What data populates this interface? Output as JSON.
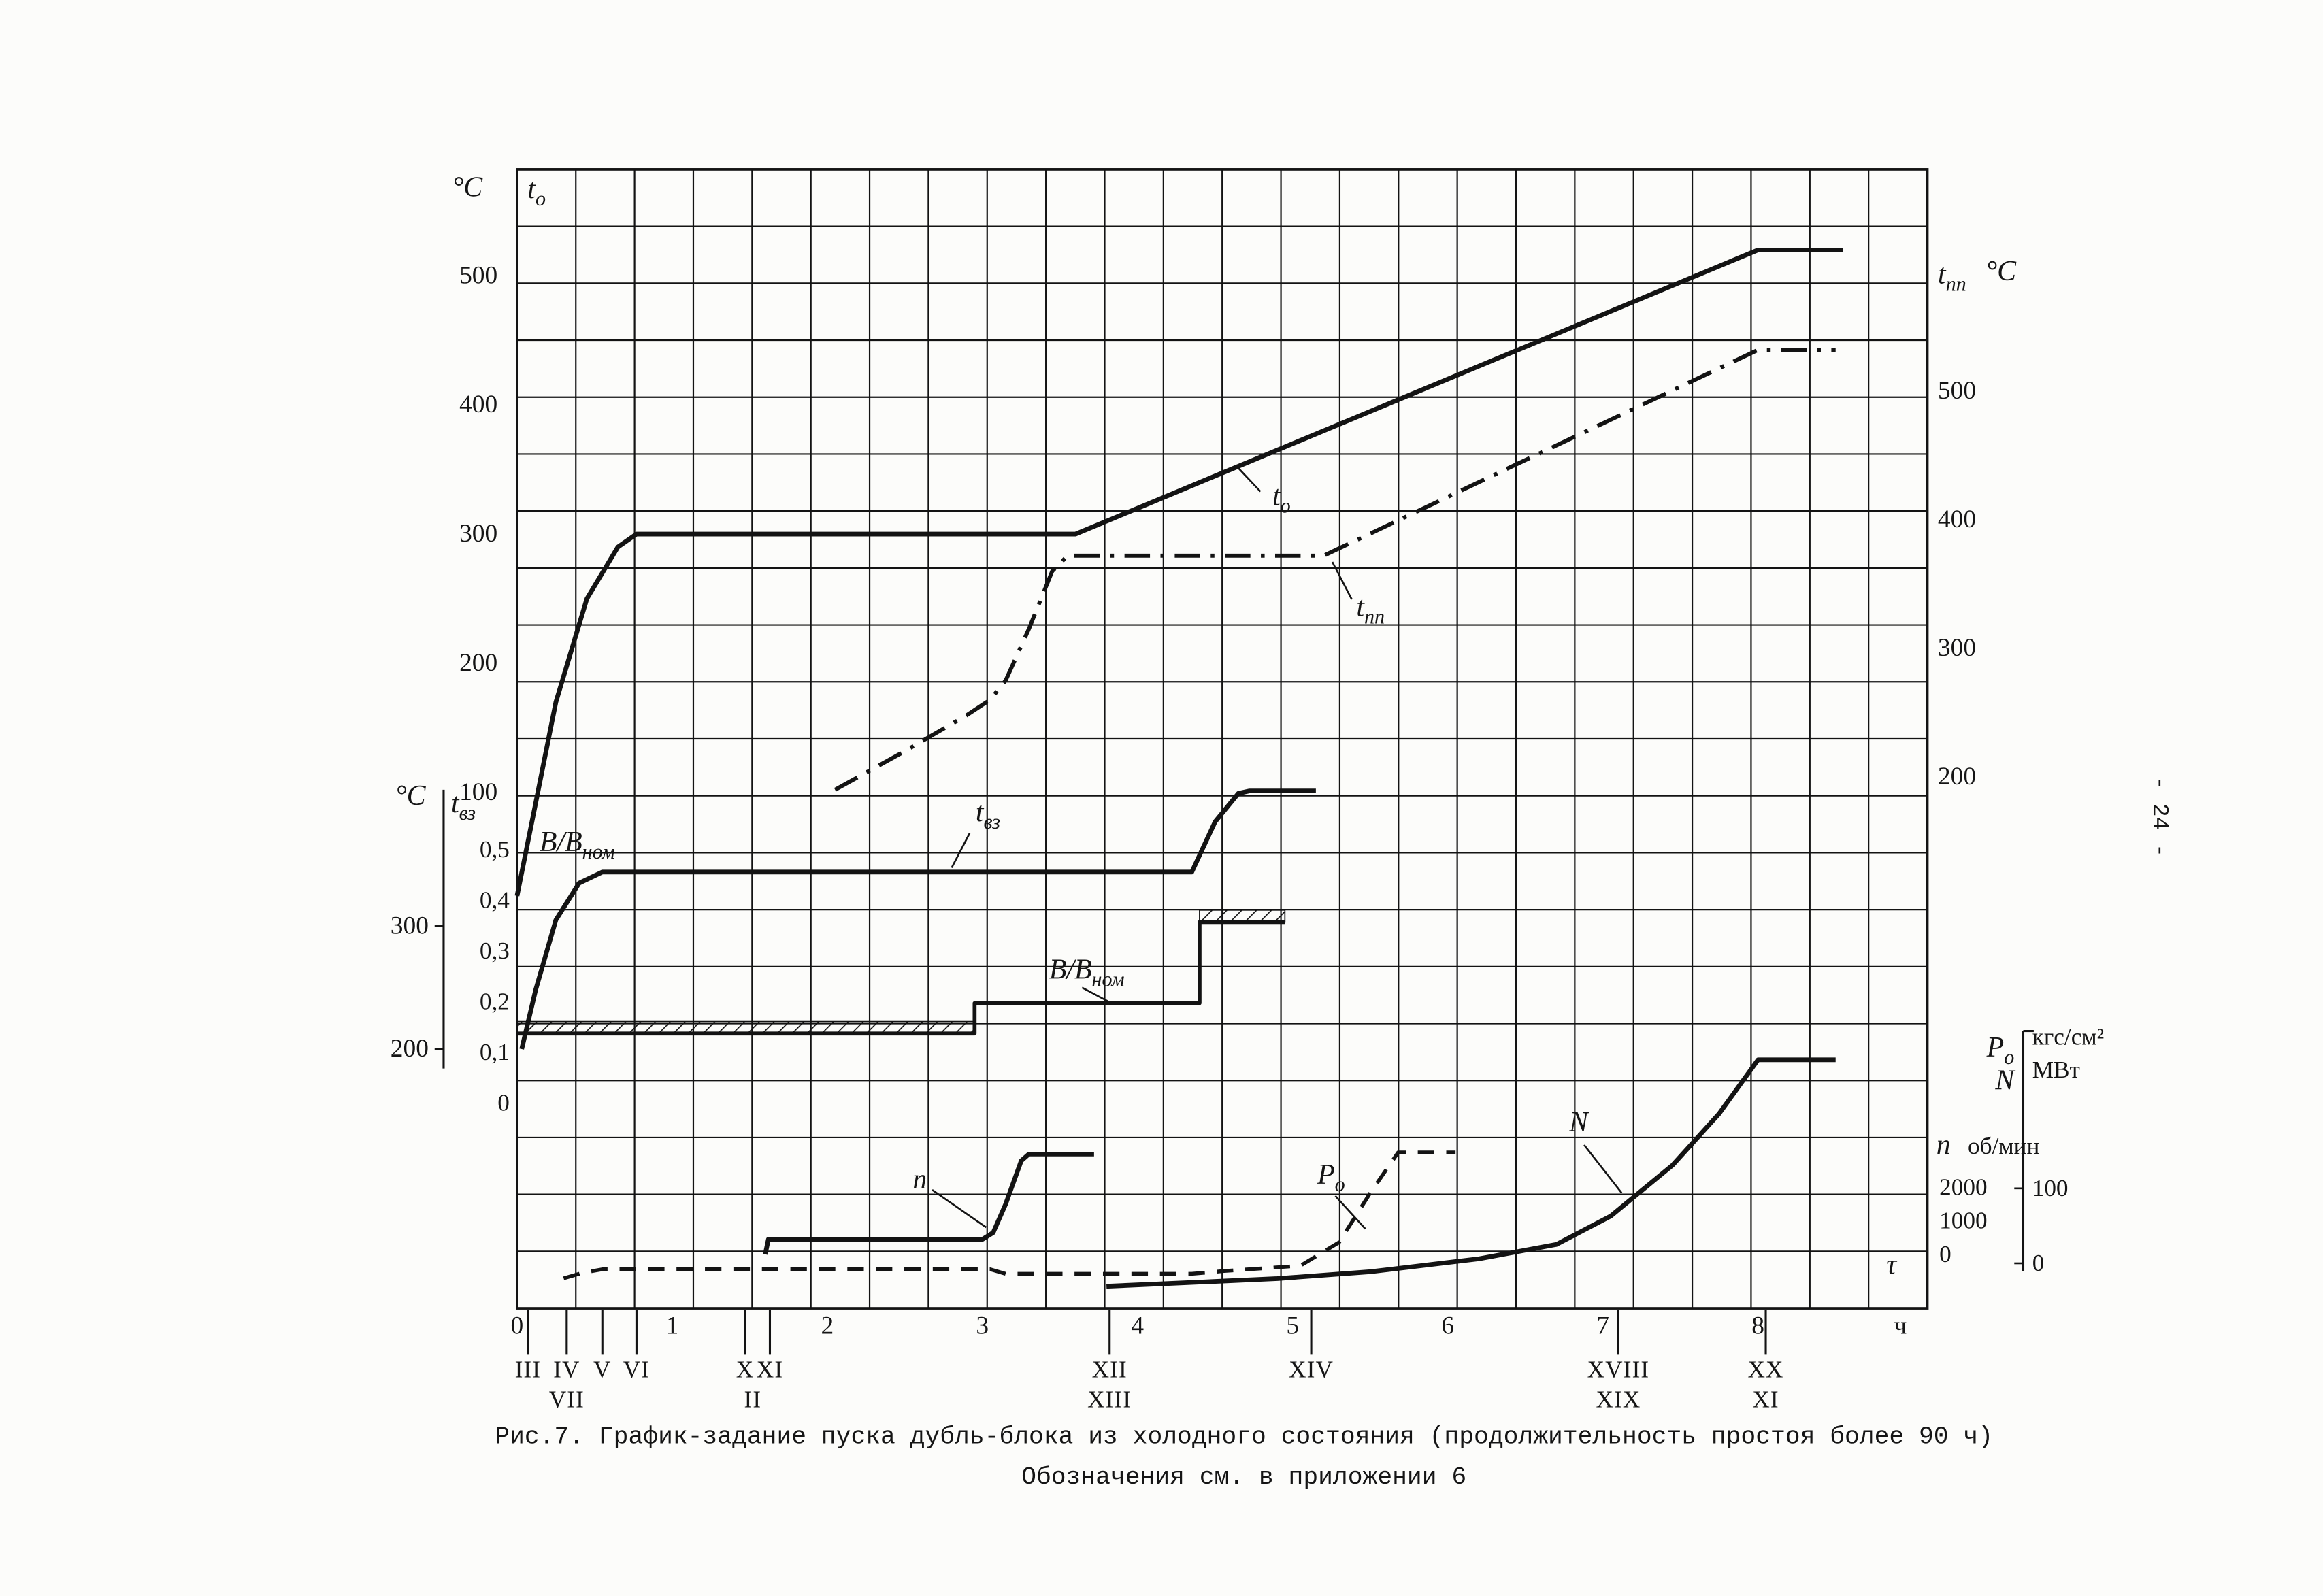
{
  "page": {
    "page_number": "- 24 -",
    "caption_line1": "Рис.7. График-задание пуска дубль-блока из холодного состояния (продолжительность простоя более 90 ч)",
    "caption_line2": "Обозначения см. в приложении 6"
  },
  "chart_data": {
    "type": "line",
    "title": "График-задание пуска дубль-блока из холодного состояния (продолжительность простоя более 90 ч)",
    "grid": "on",
    "x_axis": {
      "ticks": [
        0,
        1,
        2,
        3,
        4,
        5,
        6,
        7,
        8
      ],
      "unit": "ч",
      "tau": "τ",
      "range": [
        0,
        9.1
      ]
    },
    "axes": {
      "t0": {
        "unit": "°C",
        "label": {
          "main": "t",
          "sub": "о"
        },
        "ticks": [
          500,
          400,
          300,
          200,
          100
        ],
        "range": [
          0,
          560
        ]
      },
      "tpp": {
        "unit": "°C",
        "label": {
          "main": "t",
          "sub": "пп"
        },
        "ticks": [
          500,
          400,
          300,
          200
        ],
        "range": [
          150,
          560
        ]
      },
      "tvz": {
        "unit": "°C",
        "label": {
          "main": "t",
          "sub": "вз"
        },
        "ticks": [
          300,
          200
        ],
        "range": [
          180,
          420
        ]
      },
      "bb": {
        "label": {
          "main": "B/B",
          "sub": "ном"
        },
        "ticks": [
          0.5,
          0.4,
          0.3,
          0.2,
          0.1,
          0
        ],
        "range": [
          0,
          0.55
        ]
      },
      "n": {
        "label": {
          "main": "n",
          "sub": ""
        },
        "unit": "об/мин",
        "ticks": [
          2000,
          1000,
          0
        ],
        "range": [
          0,
          3000
        ]
      },
      "pn": {
        "labels": [
          {
            "main": "P",
            "sub": "о"
          },
          {
            "main": "N",
            "sub": ""
          }
        ],
        "units": [
          "кгс/см²",
          "МВт"
        ],
        "ticks": [
          100,
          0
        ]
      }
    },
    "series": [
      {
        "id": "t0",
        "scale": "t0",
        "style": "solid",
        "label": {
          "main": "t",
          "sub": "о"
        },
        "points": [
          [
            0,
            20
          ],
          [
            0.1,
            80
          ],
          [
            0.25,
            170
          ],
          [
            0.45,
            250
          ],
          [
            0.65,
            290
          ],
          [
            0.77,
            300
          ],
          [
            3.6,
            300
          ],
          [
            8.0,
            520
          ],
          [
            8.55,
            520
          ]
        ]
      },
      {
        "id": "tpp",
        "scale": "tpp",
        "style": "dashdot",
        "label": {
          "main": "t",
          "sub": "пп"
        },
        "points": [
          [
            2.05,
            190
          ],
          [
            2.5,
            220
          ],
          [
            2.9,
            248
          ],
          [
            3.05,
            260
          ],
          [
            3.15,
            275
          ],
          [
            3.3,
            315
          ],
          [
            3.45,
            360
          ],
          [
            3.55,
            372
          ],
          [
            5.2,
            372
          ],
          [
            8.0,
            532
          ],
          [
            8.5,
            532
          ]
        ]
      },
      {
        "id": "tvz",
        "scale": "tvz",
        "style": "solid",
        "label": {
          "main": "t",
          "sub": "вз"
        },
        "points": [
          [
            0.03,
            200
          ],
          [
            0.12,
            248
          ],
          [
            0.25,
            305
          ],
          [
            0.4,
            335
          ],
          [
            0.55,
            344
          ],
          [
            4.35,
            344
          ],
          [
            4.5,
            385
          ],
          [
            4.65,
            408
          ],
          [
            4.72,
            410
          ],
          [
            5.15,
            410
          ]
        ]
      },
      {
        "id": "bb",
        "scale": "bb",
        "style": "step",
        "label": {
          "main": "B/B",
          "sub": "ном"
        },
        "points": [
          [
            0,
            0.14
          ],
          [
            2.95,
            0.14
          ],
          [
            2.95,
            0.2
          ],
          [
            4.4,
            0.2
          ],
          [
            4.4,
            0.36
          ],
          [
            4.95,
            0.36
          ]
        ],
        "hatched": [
          {
            "from": 0,
            "to": 2.95,
            "level": 0.14
          },
          {
            "from": 4.4,
            "to": 4.95,
            "level": 0.36
          }
        ]
      },
      {
        "id": "n",
        "scale": "n",
        "style": "solid",
        "label": {
          "main": "n",
          "sub": ""
        },
        "points": [
          [
            1.6,
            0
          ],
          [
            1.62,
            450
          ],
          [
            3.0,
            450
          ],
          [
            3.07,
            650
          ],
          [
            3.15,
            1500
          ],
          [
            3.25,
            2800
          ],
          [
            3.3,
            3000
          ],
          [
            3.72,
            3000
          ]
        ]
      },
      {
        "id": "p0",
        "scale": "p0",
        "style": "dashed",
        "label": {
          "main": "P",
          "sub": "о"
        },
        "points": [
          [
            0.3,
            0
          ],
          [
            0.42,
            6
          ],
          [
            0.55,
            10
          ],
          [
            3.05,
            10
          ],
          [
            3.15,
            5
          ],
          [
            4.35,
            5
          ],
          [
            4.55,
            8
          ],
          [
            5.05,
            14
          ],
          [
            5.3,
            40
          ],
          [
            5.5,
            95
          ],
          [
            5.68,
            140
          ],
          [
            6.05,
            140
          ]
        ]
      },
      {
        "id": "N",
        "scale": "N",
        "style": "solid",
        "label": {
          "main": "N",
          "sub": ""
        },
        "points": [
          [
            3.8,
            3
          ],
          [
            4.3,
            7
          ],
          [
            4.9,
            12
          ],
          [
            5.5,
            20
          ],
          [
            6.2,
            35
          ],
          [
            6.7,
            52
          ],
          [
            7.05,
            85
          ],
          [
            7.45,
            145
          ],
          [
            7.75,
            205
          ],
          [
            8.0,
            268
          ],
          [
            8.5,
            268
          ]
        ]
      }
    ],
    "milestones": {
      "top": [
        {
          "label": "III",
          "h": 0.07
        },
        {
          "label": "IV",
          "h": 0.32
        },
        {
          "label": "V",
          "h": 0.55
        },
        {
          "label": "VI",
          "h": 0.77
        },
        {
          "label": "X",
          "h": 1.47
        },
        {
          "label": "XI",
          "h": 1.63
        },
        {
          "label": "XII",
          "h": 3.82
        },
        {
          "label": "XIV",
          "h": 5.12
        },
        {
          "label": "XVIII",
          "h": 7.1
        },
        {
          "label": "XX",
          "h": 8.05
        }
      ],
      "bottom": [
        {
          "label": "VII",
          "h": 0.32
        },
        {
          "label": "II",
          "h": 1.52
        },
        {
          "label": "XIII",
          "h": 3.82
        },
        {
          "label": "XIX",
          "h": 7.1
        },
        {
          "label": "XI",
          "h": 8.05
        }
      ]
    },
    "ink_color": "#131313"
  }
}
